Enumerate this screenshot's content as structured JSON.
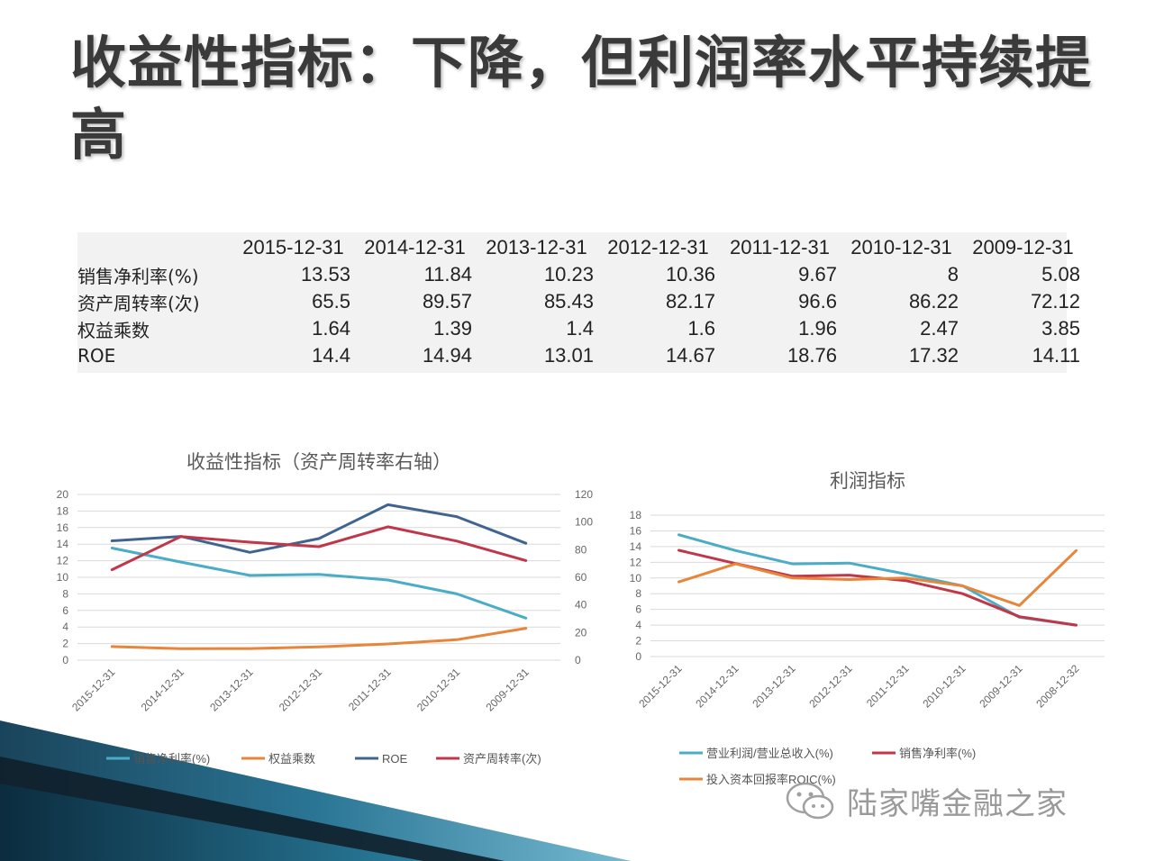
{
  "slide": {
    "title": "收益性指标：下降，但利润率水平持续提高"
  },
  "table": {
    "columns": [
      "2015-12-31",
      "2014-12-31",
      "2013-12-31",
      "2012-12-31",
      "2011-12-31",
      "2010-12-31",
      "2009-12-31"
    ],
    "rows": [
      {
        "label": "销售净利率(%)",
        "values": [
          "13.53",
          "11.84",
          "10.23",
          "10.36",
          "9.67",
          "8",
          "5.08"
        ]
      },
      {
        "label": "资产周转率(次)",
        "values": [
          "65.5",
          "89.57",
          "85.43",
          "82.17",
          "96.6",
          "86.22",
          "72.12"
        ]
      },
      {
        "label": "权益乘数",
        "values": [
          "1.64",
          "1.39",
          "1.4",
          "1.6",
          "1.96",
          "2.47",
          "3.85"
        ]
      },
      {
        "label": "ROE",
        "values": [
          "14.4",
          "14.94",
          "13.01",
          "14.67",
          "18.76",
          "17.32",
          "14.11"
        ]
      }
    ]
  },
  "chart_data": [
    {
      "type": "line",
      "title": "收益性指标（资产周转率右轴）",
      "categories": [
        "2015-12-31",
        "2014-12-31",
        "2013-12-31",
        "2012-12-31",
        "2011-12-31",
        "2010-12-31",
        "2009-12-31"
      ],
      "ylim": [
        0,
        20
      ],
      "yticks": [
        0,
        2,
        4,
        6,
        8,
        10,
        12,
        14,
        16,
        18,
        20
      ],
      "y2lim": [
        0,
        120
      ],
      "y2ticks": [
        0,
        20,
        40,
        60,
        80,
        100,
        120
      ],
      "grid": true,
      "legend": "bottom",
      "series": [
        {
          "name": "销售净利率(%)",
          "axis": "left",
          "color": "#4bacc6",
          "values": [
            13.53,
            11.84,
            10.23,
            10.36,
            9.67,
            8,
            5.08
          ]
        },
        {
          "name": "权益乘数",
          "axis": "left",
          "color": "#e7853a",
          "values": [
            1.64,
            1.39,
            1.4,
            1.6,
            1.96,
            2.47,
            3.85
          ]
        },
        {
          "name": "ROE",
          "axis": "left",
          "color": "#41648f",
          "values": [
            14.4,
            14.94,
            13.01,
            14.67,
            18.76,
            17.32,
            14.11
          ]
        },
        {
          "name": "资产周转率(次)",
          "axis": "right",
          "color": "#c0374a",
          "values": [
            65.5,
            89.57,
            85.43,
            82.17,
            96.6,
            86.22,
            72.12
          ]
        }
      ]
    },
    {
      "type": "line",
      "title": "利润指标",
      "categories": [
        "2015-12-31",
        "2014-12-31",
        "2013-12-31",
        "2012-12-31",
        "2011-12-31",
        "2010-12-31",
        "2009-12-31",
        "2008-12-32"
      ],
      "ylim": [
        0,
        18
      ],
      "yticks": [
        0,
        2,
        4,
        6,
        8,
        10,
        12,
        14,
        16,
        18
      ],
      "grid": true,
      "legend": "bottom",
      "series": [
        {
          "name": "营业利润/营业总收入(%)",
          "color": "#4bacc6",
          "values": [
            15.5,
            13.5,
            11.8,
            11.9,
            10.5,
            9.0,
            5.0,
            4.0
          ]
        },
        {
          "name": "销售净利率(%)",
          "color": "#c0374a",
          "values": [
            13.53,
            11.84,
            10.23,
            10.36,
            9.67,
            8.0,
            5.08,
            4.0
          ]
        },
        {
          "name": "投入资本回报率ROIC(%)",
          "color": "#e7853a",
          "values": [
            9.5,
            11.8,
            10.0,
            9.8,
            10.0,
            9.0,
            6.5,
            13.5
          ]
        }
      ]
    }
  ],
  "watermark": {
    "text": "陆家嘴金融之家",
    "icon": "wechat-icon"
  },
  "colors": {
    "teal": "#4bacc6",
    "orange": "#e7853a",
    "navy": "#41648f",
    "red": "#c0374a"
  }
}
